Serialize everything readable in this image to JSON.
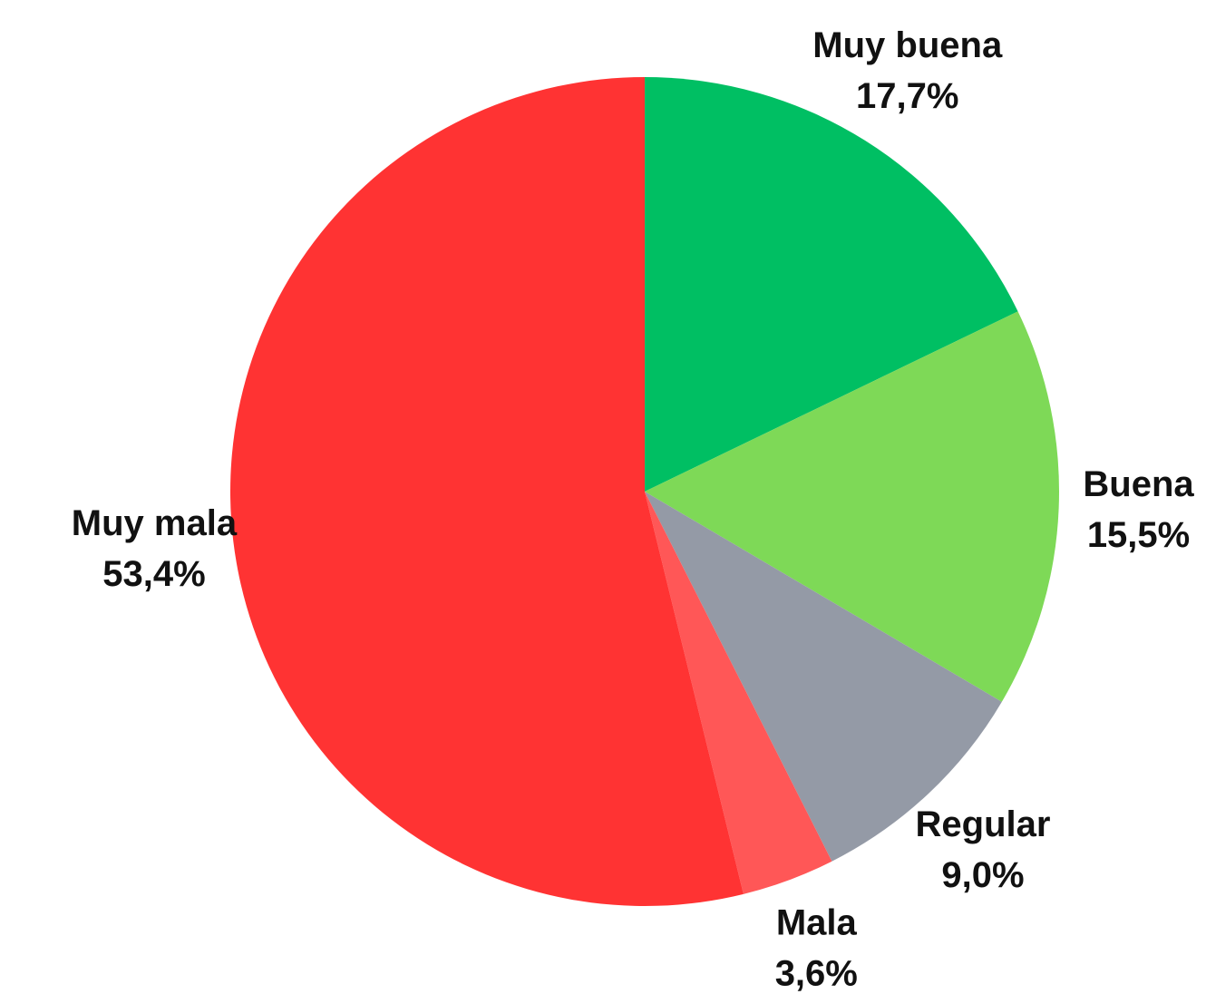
{
  "chart_data": {
    "type": "pie",
    "categories": [
      "Muy buena",
      "Buena",
      "Regular",
      "Mala",
      "Muy mala"
    ],
    "values": [
      17.7,
      15.5,
      9.0,
      3.6,
      53.4
    ],
    "value_labels": [
      "17,7%",
      "15,5%",
      "9,0%",
      "3,6%",
      "53,4%"
    ],
    "colors": [
      "#00bf63",
      "#7ed957",
      "#949aa6",
      "#ff5757",
      "#ff3333"
    ]
  }
}
